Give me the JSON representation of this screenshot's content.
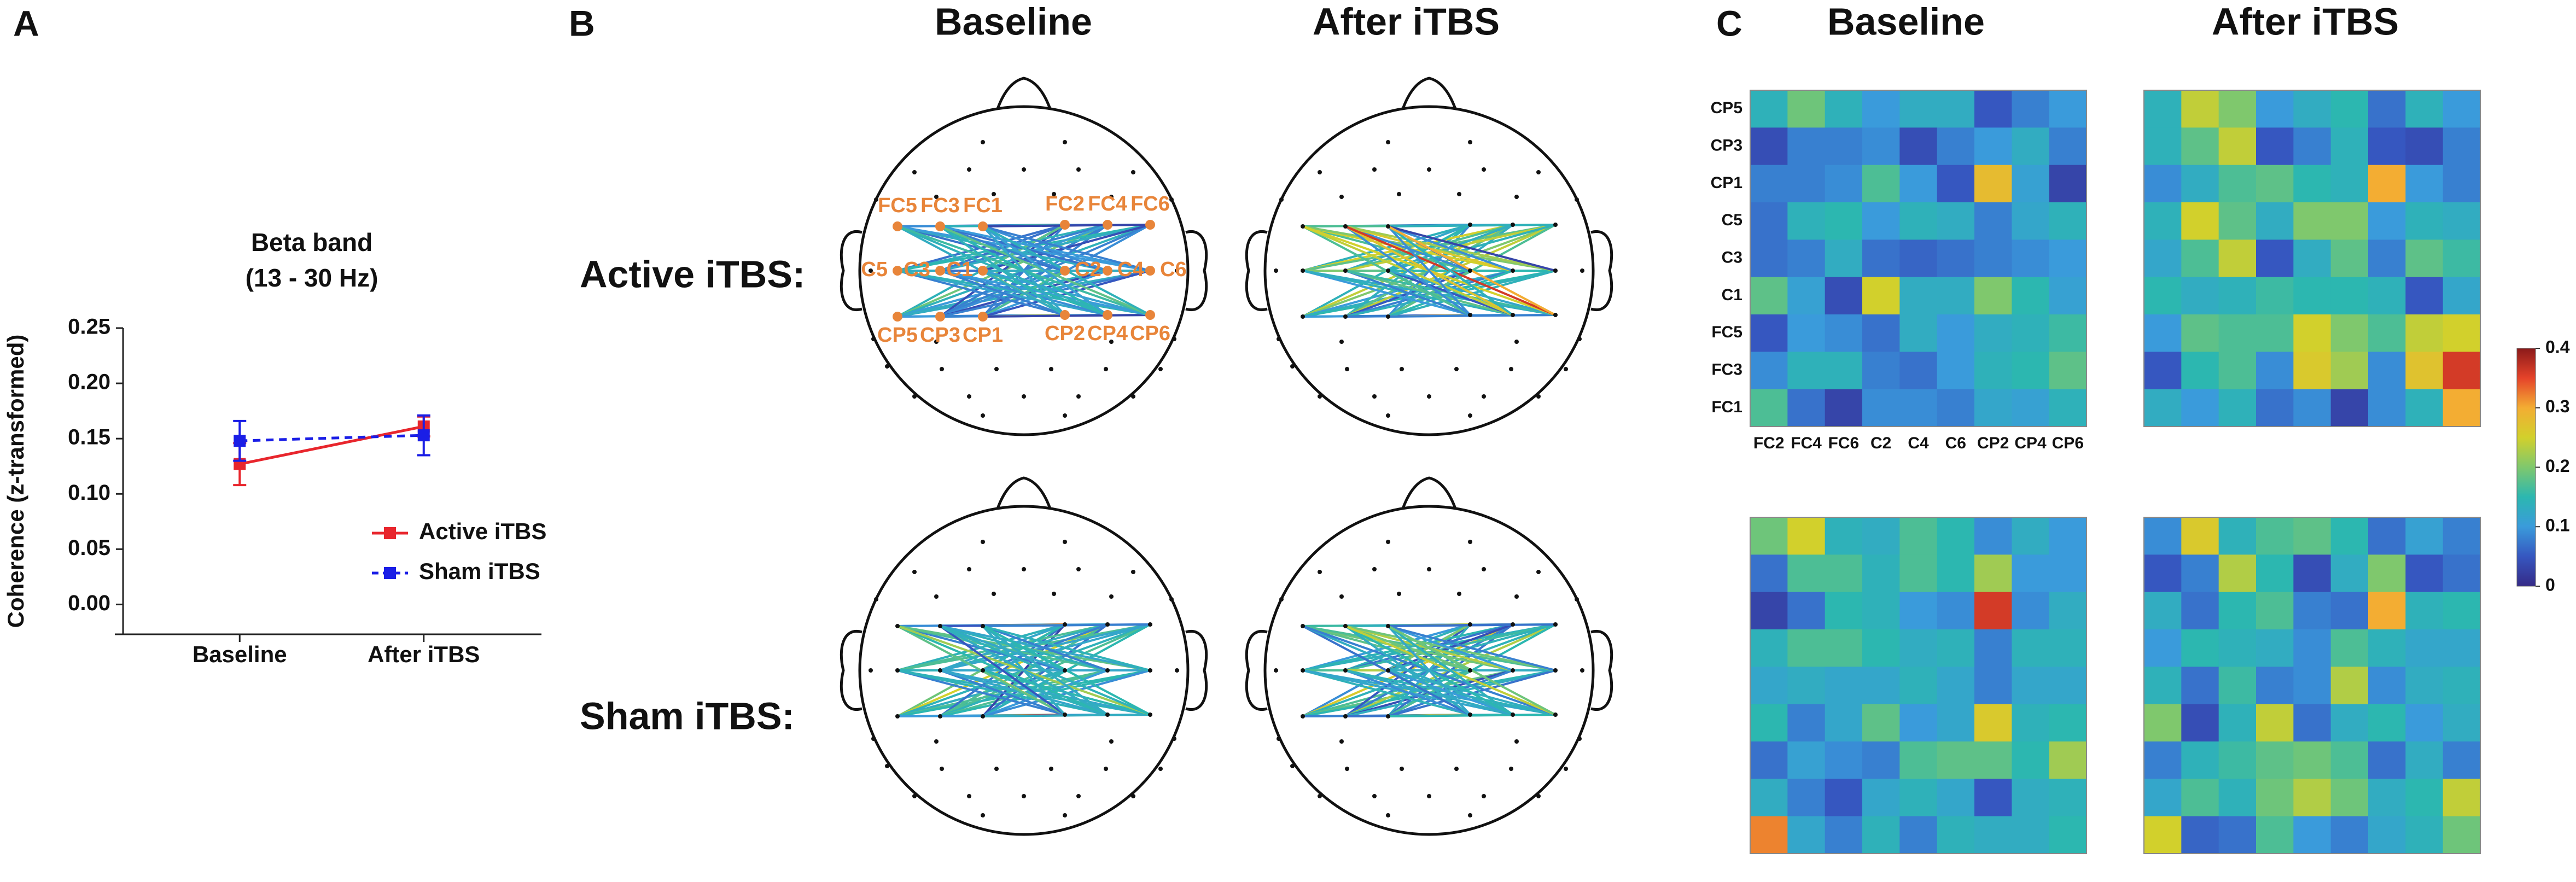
{
  "panel_labels": {
    "a": "A",
    "b": "B",
    "c": "C"
  },
  "panel_b": {
    "column_titles": [
      "Baseline",
      "After iTBS"
    ],
    "row_titles": [
      "Active iTBS:",
      "Sham iTBS:"
    ],
    "electrode_color": "#e8853a"
  },
  "chart_data": [
    {
      "type": "line",
      "title": "Beta band",
      "subtitle": "(13 - 30 Hz)",
      "y_label": "Coherence (z-transformed)",
      "categories": [
        "Baseline",
        "After iTBS"
      ],
      "series": [
        {
          "name": "Active iTBS",
          "color": "#e8262d",
          "line_style": "solid",
          "values": [
            0.127,
            0.161
          ],
          "errors": [
            0.019,
            0.009
          ]
        },
        {
          "name": "Sham iTBS",
          "color": "#1a1ee6",
          "line_style": "dashed",
          "values": [
            0.148,
            0.153
          ],
          "errors": [
            0.018,
            0.018
          ]
        }
      ],
      "ylim": [
        -0.027,
        0.25
      ],
      "yticks": [
        {
          "value": 0,
          "label": "0.00"
        },
        {
          "value": 0.05,
          "label": "0.05"
        },
        {
          "value": 0.1,
          "label": "0.10"
        },
        {
          "value": 0.15,
          "label": "0.15"
        },
        {
          "value": 0.2,
          "label": "0.20"
        },
        {
          "value": 0.25,
          "label": "0.25"
        }
      ],
      "legend": "right"
    },
    {
      "type": "heatmap",
      "column_titles": [
        "Baseline",
        "After iTBS"
      ],
      "row_labels": [
        "CP5",
        "CP3",
        "CP1",
        "C5",
        "C3",
        "C1",
        "FC5",
        "FC3",
        "FC1"
      ],
      "col_labels": [
        "FC2",
        "FC4",
        "FC6",
        "C2",
        "C4",
        "C6",
        "CP2",
        "CP4",
        "CP6"
      ],
      "clim": [
        0,
        0.4
      ],
      "cticks": [
        0,
        0.1,
        0.2,
        0.3,
        0.4
      ],
      "colormap": [
        "#352a87",
        "#3657c0",
        "#3a9bdb",
        "#2cb7b0",
        "#7fc86d",
        "#d2d02c",
        "#f3ad33",
        "#e5432a",
        "#8b1a1a"
      ],
      "matrices": [
        [
          [
            0.14,
            0.19,
            0.14,
            0.1,
            0.13,
            0.13,
            0.05,
            0.08,
            0.1
          ],
          [
            0.04,
            0.08,
            0.08,
            0.09,
            0.04,
            0.08,
            0.1,
            0.13,
            0.08
          ],
          [
            0.08,
            0.08,
            0.09,
            0.17,
            0.1,
            0.05,
            0.28,
            0.11,
            0.03
          ],
          [
            0.07,
            0.14,
            0.15,
            0.1,
            0.14,
            0.13,
            0.08,
            0.12,
            0.14
          ],
          [
            0.07,
            0.08,
            0.13,
            0.07,
            0.06,
            0.07,
            0.08,
            0.09,
            0.1
          ],
          [
            0.18,
            0.11,
            0.04,
            0.25,
            0.13,
            0.13,
            0.2,
            0.15,
            0.11
          ],
          [
            0.05,
            0.1,
            0.09,
            0.07,
            0.13,
            0.1,
            0.13,
            0.14,
            0.16
          ],
          [
            0.09,
            0.14,
            0.14,
            0.08,
            0.07,
            0.1,
            0.14,
            0.15,
            0.18
          ],
          [
            0.17,
            0.07,
            0.03,
            0.09,
            0.09,
            0.08,
            0.12,
            0.11,
            0.14
          ]
        ],
        [
          [
            0.14,
            0.24,
            0.2,
            0.1,
            0.13,
            0.15,
            0.07,
            0.14,
            0.1
          ],
          [
            0.14,
            0.18,
            0.24,
            0.05,
            0.08,
            0.14,
            0.05,
            0.04,
            0.08
          ],
          [
            0.09,
            0.13,
            0.17,
            0.18,
            0.15,
            0.14,
            0.3,
            0.1,
            0.08
          ],
          [
            0.14,
            0.25,
            0.18,
            0.13,
            0.2,
            0.2,
            0.1,
            0.14,
            0.13
          ],
          [
            0.12,
            0.17,
            0.24,
            0.05,
            0.13,
            0.18,
            0.08,
            0.18,
            0.16
          ],
          [
            0.15,
            0.13,
            0.14,
            0.16,
            0.15,
            0.15,
            0.14,
            0.05,
            0.12
          ],
          [
            0.1,
            0.18,
            0.17,
            0.17,
            0.25,
            0.2,
            0.17,
            0.24,
            0.25
          ],
          [
            0.05,
            0.15,
            0.17,
            0.09,
            0.26,
            0.22,
            0.09,
            0.27,
            0.36
          ],
          [
            0.13,
            0.1,
            0.14,
            0.07,
            0.09,
            0.03,
            0.09,
            0.14,
            0.3
          ]
        ],
        [
          [
            0.19,
            0.25,
            0.14,
            0.13,
            0.17,
            0.15,
            0.09,
            0.13,
            0.1
          ],
          [
            0.07,
            0.17,
            0.17,
            0.14,
            0.17,
            0.15,
            0.22,
            0.1,
            0.1
          ],
          [
            0.03,
            0.07,
            0.15,
            0.14,
            0.1,
            0.09,
            0.36,
            0.09,
            0.13
          ],
          [
            0.14,
            0.17,
            0.17,
            0.15,
            0.13,
            0.14,
            0.08,
            0.14,
            0.14
          ],
          [
            0.12,
            0.13,
            0.12,
            0.12,
            0.14,
            0.12,
            0.08,
            0.12,
            0.12
          ],
          [
            0.15,
            0.08,
            0.12,
            0.18,
            0.1,
            0.12,
            0.26,
            0.14,
            0.15
          ],
          [
            0.07,
            0.11,
            0.09,
            0.08,
            0.17,
            0.18,
            0.18,
            0.15,
            0.22
          ],
          [
            0.13,
            0.08,
            0.05,
            0.12,
            0.14,
            0.12,
            0.05,
            0.13,
            0.14
          ],
          [
            0.32,
            0.12,
            0.08,
            0.14,
            0.08,
            0.14,
            0.13,
            0.13,
            0.15
          ]
        ],
        [
          [
            0.09,
            0.26,
            0.14,
            0.17,
            0.18,
            0.15,
            0.07,
            0.11,
            0.08
          ],
          [
            0.05,
            0.08,
            0.23,
            0.15,
            0.04,
            0.13,
            0.2,
            0.05,
            0.07
          ],
          [
            0.13,
            0.07,
            0.15,
            0.17,
            0.08,
            0.07,
            0.3,
            0.14,
            0.15
          ],
          [
            0.1,
            0.15,
            0.14,
            0.13,
            0.09,
            0.17,
            0.14,
            0.12,
            0.12
          ],
          [
            0.14,
            0.07,
            0.16,
            0.08,
            0.09,
            0.23,
            0.09,
            0.13,
            0.14
          ],
          [
            0.2,
            0.04,
            0.14,
            0.24,
            0.07,
            0.13,
            0.15,
            0.1,
            0.13
          ],
          [
            0.08,
            0.14,
            0.16,
            0.18,
            0.19,
            0.17,
            0.07,
            0.13,
            0.08
          ],
          [
            0.12,
            0.17,
            0.14,
            0.19,
            0.23,
            0.19,
            0.13,
            0.15,
            0.24
          ],
          [
            0.25,
            0.06,
            0.07,
            0.17,
            0.1,
            0.08,
            0.12,
            0.14,
            0.19
          ]
        ]
      ]
    }
  ]
}
